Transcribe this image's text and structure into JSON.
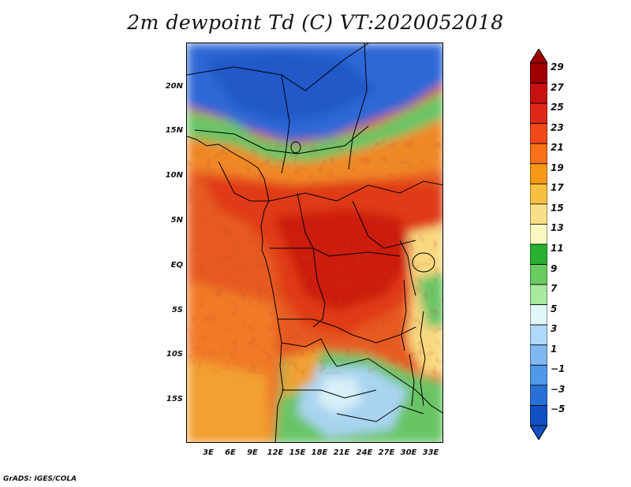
{
  "title": "2m dewpoint Td (C) VT:2020052018",
  "credit": "GrADS: IGES/COLA",
  "y_axis_labels": [
    "20N",
    "15N",
    "10N",
    "5N",
    "EQ",
    "5S",
    "10S",
    "15S"
  ],
  "x_axis_labels": [
    "3E",
    "6E",
    "9E",
    "12E",
    "15E",
    "18E",
    "21E",
    "24E",
    "27E",
    "30E",
    "33E"
  ],
  "colorbar": {
    "labels": [
      "29",
      "27",
      "25",
      "23",
      "21",
      "19",
      "17",
      "15",
      "13",
      "11",
      "9",
      "7",
      "5",
      "3",
      "1",
      "−1",
      "−3",
      "−5"
    ],
    "colors": [
      "#a00000",
      "#c81010",
      "#e02818",
      "#f04818",
      "#f87018",
      "#f89818",
      "#f8c040",
      "#f8e088",
      "#f8f8c0",
      "#28b030",
      "#68cc60",
      "#a8e8a0",
      "#e0f8f8",
      "#b0d8f8",
      "#80b8f0",
      "#5098e8",
      "#2870d8",
      "#1050c0"
    ]
  },
  "field_colors": {
    "ocean_warm": "#e65a23",
    "ocean_south": "#f2a030",
    "dry_sahara": "#2e68d6",
    "sahel_green": "#6ac466",
    "humid_core": "#d02010",
    "south_dry": "#a8d4f0",
    "east_moist": "#f8d880"
  }
}
